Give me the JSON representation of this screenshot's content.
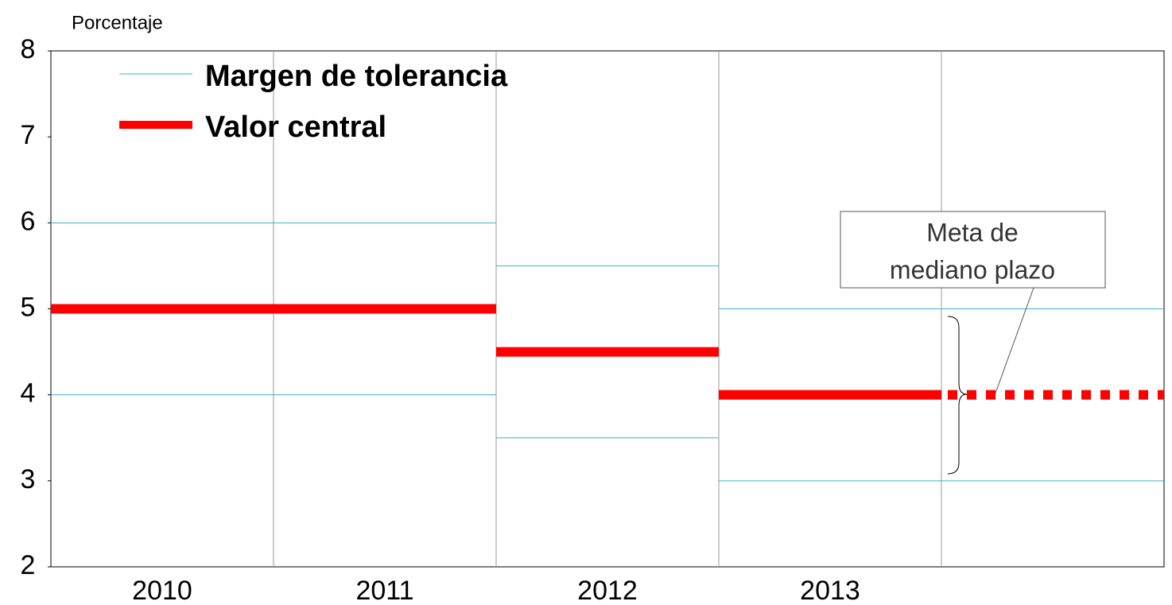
{
  "chart_data": {
    "type": "step-band",
    "y_label": "Porcentaje",
    "categories": [
      "2010",
      "2011",
      "2012",
      "2013",
      null
    ],
    "ylim": [
      2,
      8
    ],
    "yticks": [
      2,
      3,
      4,
      5,
      6,
      7,
      8
    ],
    "series": [
      {
        "name": "Margen de tolerancia",
        "color": "#3fb0d2",
        "values": [
          6,
          6,
          5.5,
          5,
          5
        ],
        "lower": [
          4,
          4,
          3.5,
          3,
          3
        ]
      },
      {
        "name": "Valor central",
        "color": "#ff0000",
        "values": [
          5,
          5,
          4.5,
          4,
          4
        ],
        "dashed": [
          false,
          false,
          false,
          false,
          true
        ]
      }
    ],
    "annotation": [
      "Meta de",
      "mediano plazo"
    ],
    "legend": "upper left"
  }
}
